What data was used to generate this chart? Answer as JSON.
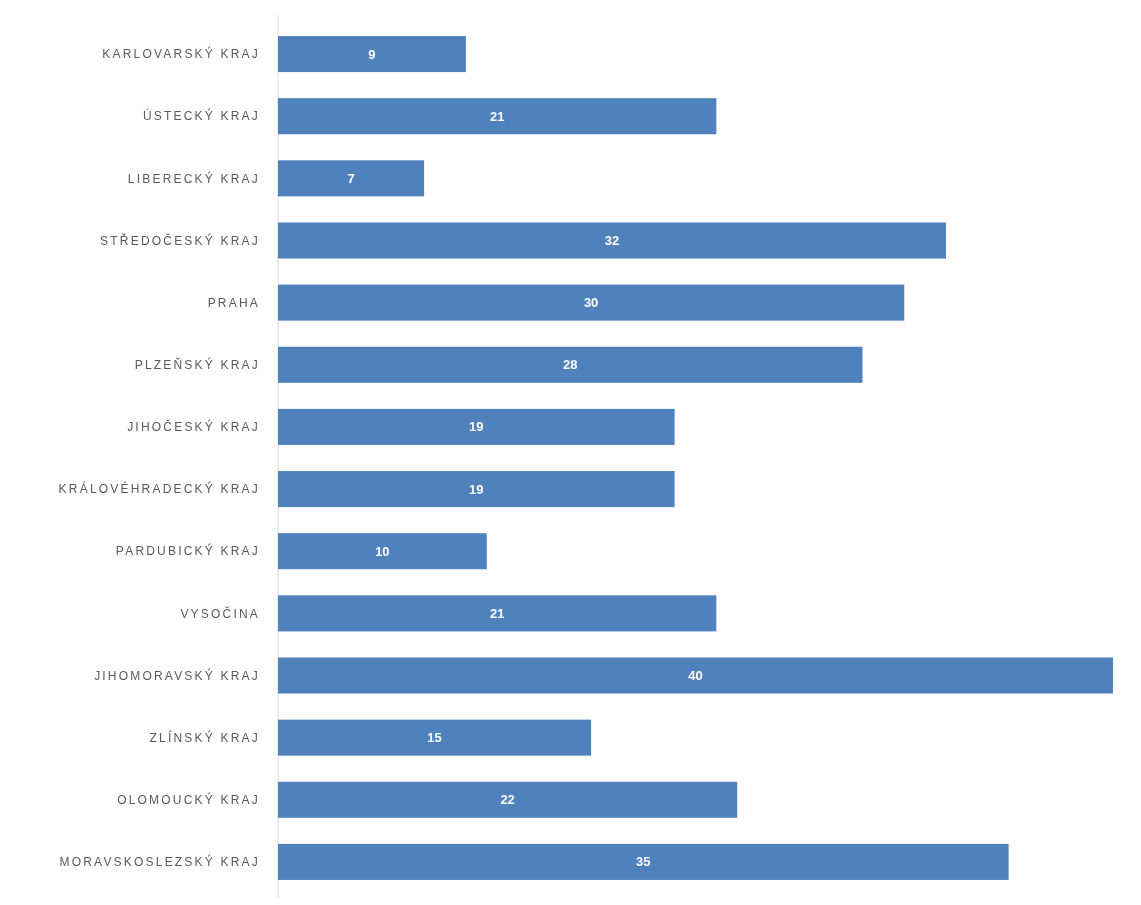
{
  "chart_data": {
    "type": "bar",
    "orientation": "horizontal",
    "categories": [
      "KARLOVARSKÝ KRAJ",
      "ÚSTECKÝ KRAJ",
      "LIBERECKÝ KRAJ",
      "STŘEDOČESKÝ KRAJ",
      "PRAHA",
      "PLZEŇSKÝ KRAJ",
      "JIHOČESKÝ KRAJ",
      "KRÁLOVÉHRADECKÝ KRAJ",
      "PARDUBICKÝ KRAJ",
      "VYSOČINA",
      "JIHOMORAVSKÝ KRAJ",
      "ZLÍNSKÝ KRAJ",
      "OLOMOUCKÝ KRAJ",
      "MORAVSKOSLEZSKÝ KRAJ"
    ],
    "values": [
      9,
      21,
      7,
      32,
      30,
      28,
      19,
      19,
      10,
      21,
      40,
      15,
      22,
      35
    ],
    "color": "#4f81bd",
    "data_labels": true
  }
}
